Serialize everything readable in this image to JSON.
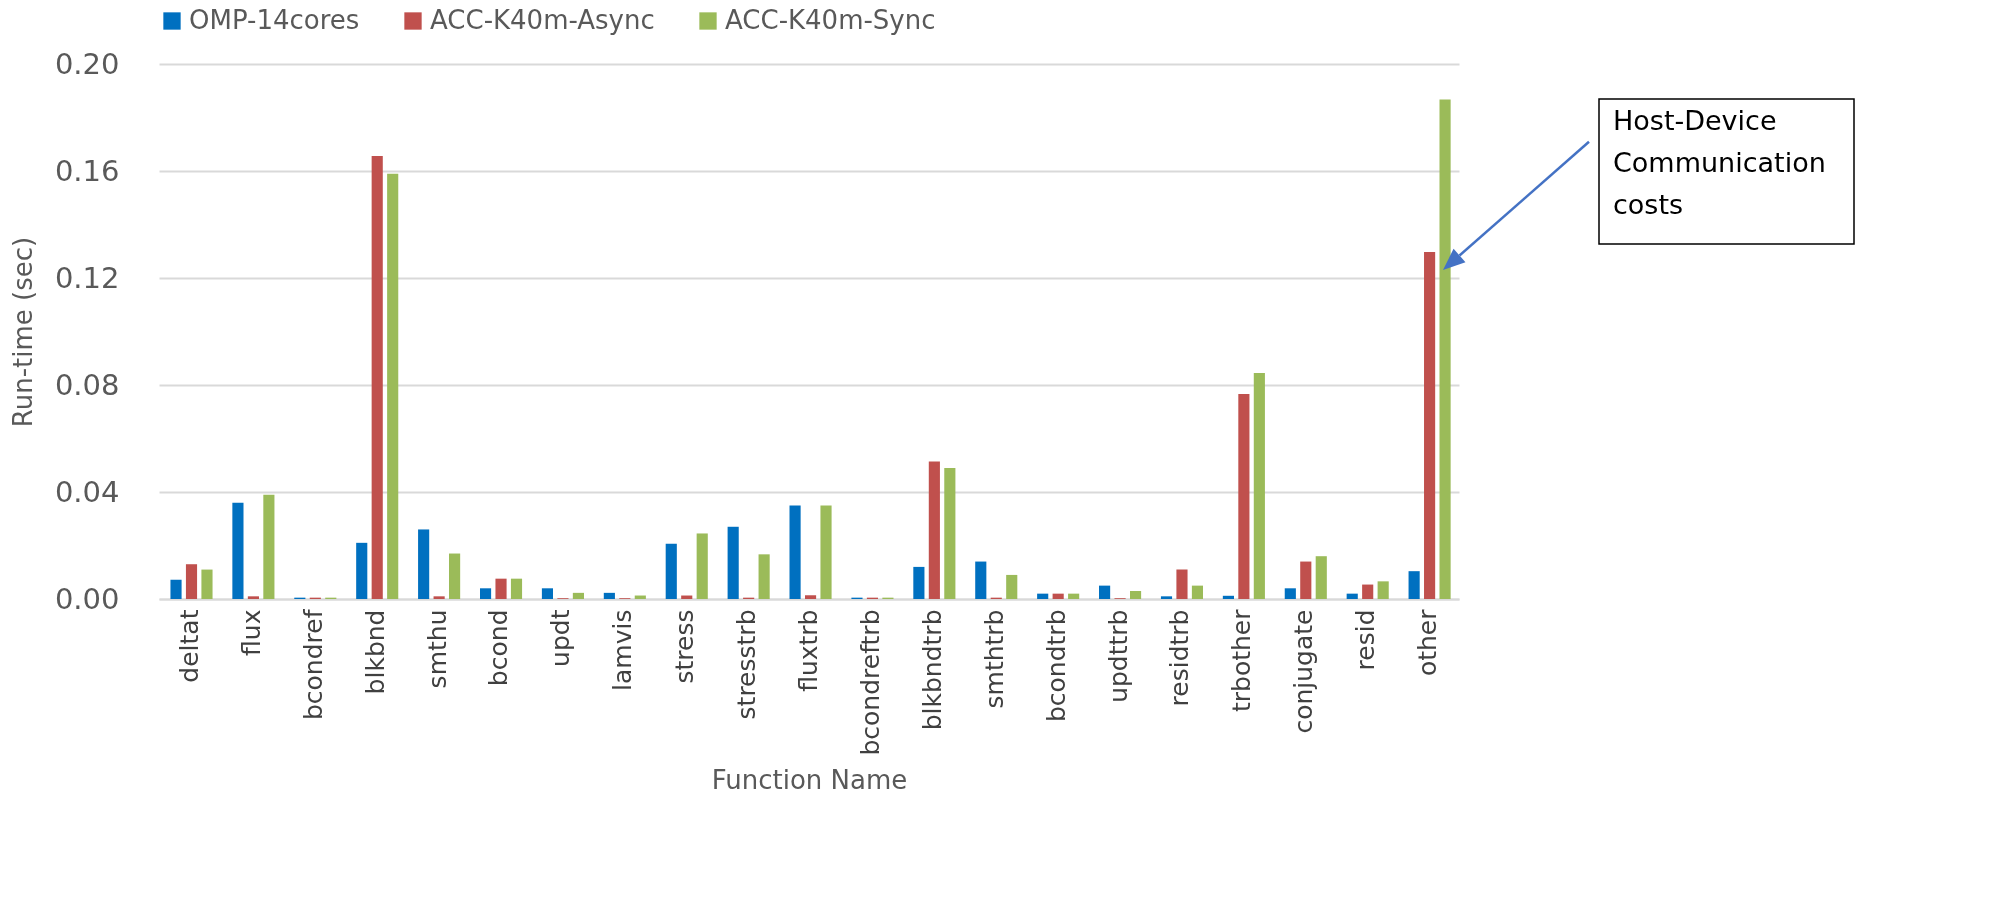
{
  "chart_data": {
    "type": "bar",
    "xlabel": "Function Name",
    "ylabel": "Run-time (sec)",
    "categories": [
      "deltat",
      "flux",
      "bcondref",
      "blkbnd",
      "smthu",
      "bcond",
      "updt",
      "lamvis",
      "stress",
      "stresstrb",
      "fluxtrb",
      "bcondreftrb",
      "blkbndtrb",
      "smthtrb",
      "bcondtrb",
      "updttrb",
      "residtrb",
      "trbother",
      "conjugate",
      "resid",
      "other"
    ],
    "series": [
      {
        "name": "OMP-14cores",
        "color": "#0070c0",
        "values": [
          0.0072,
          0.036,
          0.0005,
          0.021,
          0.026,
          0.004,
          0.004,
          0.0023,
          0.0207,
          0.027,
          0.035,
          0.0005,
          0.012,
          0.014,
          0.002,
          0.005,
          0.001,
          0.0012,
          0.004,
          0.002,
          0.0104
        ]
      },
      {
        "name": "ACC-K40m-Async",
        "color": "#c0504d",
        "values": [
          0.013,
          0.001,
          0.0005,
          0.1656,
          0.001,
          0.0076,
          0.0003,
          0.0003,
          0.0013,
          0.0005,
          0.0014,
          0.0005,
          0.0514,
          0.0005,
          0.002,
          0.0003,
          0.011,
          0.0766,
          0.014,
          0.0054,
          0.1297
        ]
      },
      {
        "name": "ACC-K40m-Sync",
        "color": "#9bbb59",
        "values": [
          0.011,
          0.039,
          0.0005,
          0.159,
          0.017,
          0.0076,
          0.0023,
          0.0013,
          0.0245,
          0.0167,
          0.035,
          0.0005,
          0.049,
          0.009,
          0.002,
          0.003,
          0.005,
          0.0845,
          0.016,
          0.0066,
          0.1867
        ]
      }
    ],
    "ylim": [
      0,
      0.2
    ],
    "yticks": [
      {
        "value": 0,
        "label": "0.00"
      },
      {
        "value": 0.04,
        "label": "0.04"
      },
      {
        "value": 0.08,
        "label": "0.08"
      },
      {
        "value": 0.12,
        "label": "0.12"
      },
      {
        "value": 0.16,
        "label": "0.16"
      },
      {
        "value": 0.2,
        "label": "0.20"
      }
    ],
    "grid": "y",
    "legend": "top",
    "annotations": [
      "Host-Device Communication costs"
    ]
  }
}
